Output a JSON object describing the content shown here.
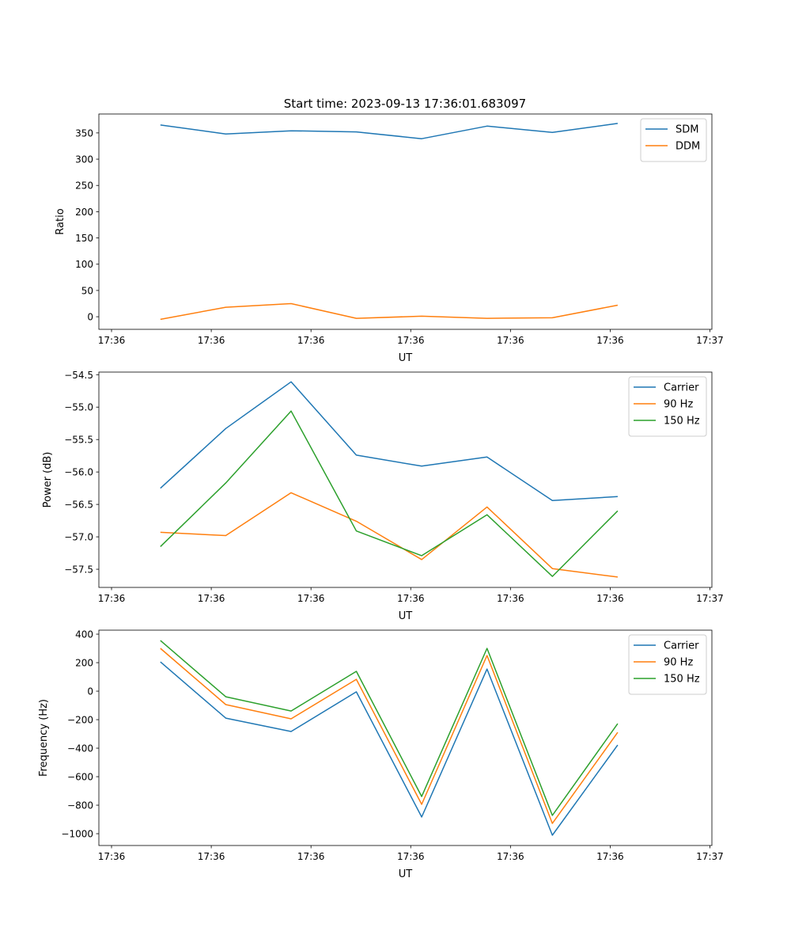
{
  "title": "Start time: 2023-09-13 17:36:01.683097",
  "colors": {
    "c0": "#1f77b4",
    "c1": "#ff7f0e",
    "c2": "#2ca02c"
  },
  "chart_data": [
    {
      "type": "line",
      "title": "Start time: 2023-09-13 17:36:01.683097",
      "xlabel": "UT",
      "ylabel": "Ratio",
      "x": [
        0.49,
        1.145,
        1.8,
        2.455,
        3.11,
        3.765,
        4.42,
        5.075
      ],
      "xlim": [
        -0.127,
        6.02
      ],
      "xticks": [
        0,
        1,
        2,
        3,
        4,
        5,
        6
      ],
      "xtick_labels": [
        "17:36",
        "17:36",
        "17:36",
        "17:36",
        "17:36",
        "17:36",
        "17:37"
      ],
      "ylim": [
        -24,
        386
      ],
      "yticks": [
        0,
        50,
        100,
        150,
        200,
        250,
        300,
        350
      ],
      "ytick_labels": [
        "0",
        "50",
        "100",
        "150",
        "200",
        "250",
        "300",
        "350"
      ],
      "legend": "top-right",
      "series": [
        {
          "name": "SDM",
          "color": "#1f77b4",
          "values": [
            365,
            348,
            354,
            352,
            339,
            363,
            351,
            368
          ]
        },
        {
          "name": "DDM",
          "color": "#ff7f0e",
          "values": [
            -5,
            18,
            25,
            -3,
            1,
            -3,
            -2,
            22
          ]
        }
      ]
    },
    {
      "type": "line",
      "xlabel": "UT",
      "ylabel": "Power (dB)",
      "x": [
        0.49,
        1.145,
        1.8,
        2.455,
        3.11,
        3.765,
        4.42,
        5.075
      ],
      "xlim": [
        -0.127,
        6.02
      ],
      "xticks": [
        0,
        1,
        2,
        3,
        4,
        5,
        6
      ],
      "xtick_labels": [
        "17:36",
        "17:36",
        "17:36",
        "17:36",
        "17:36",
        "17:36",
        "17:37"
      ],
      "ylim": [
        -57.78,
        -54.46
      ],
      "yticks": [
        -57.5,
        -57.0,
        -56.5,
        -56.0,
        -55.5,
        -55.0,
        -54.5
      ],
      "ytick_labels": [
        "−57.5",
        "−57.0",
        "−56.5",
        "−56.0",
        "−55.5",
        "−55.0",
        "−54.5"
      ],
      "legend": "top-right",
      "series": [
        {
          "name": "Carrier",
          "color": "#1f77b4",
          "values": [
            -56.25,
            -55.33,
            -54.61,
            -55.74,
            -55.91,
            -55.77,
            -56.44,
            -56.38
          ]
        },
        {
          "name": "90 Hz",
          "color": "#ff7f0e",
          "values": [
            -56.93,
            -56.98,
            -56.32,
            -56.76,
            -57.35,
            -56.54,
            -57.49,
            -57.62
          ]
        },
        {
          "name": "150 Hz",
          "color": "#2ca02c",
          "values": [
            -57.15,
            -56.17,
            -55.06,
            -56.91,
            -57.29,
            -56.66,
            -57.61,
            -56.6
          ]
        }
      ]
    },
    {
      "type": "line",
      "xlabel": "UT",
      "ylabel": "Frequency (Hz)",
      "x": [
        0.49,
        1.145,
        1.8,
        2.455,
        3.11,
        3.765,
        4.42,
        5.075
      ],
      "xlim": [
        -0.127,
        6.02
      ],
      "xticks": [
        0,
        1,
        2,
        3,
        4,
        5,
        6
      ],
      "xtick_labels": [
        "17:36",
        "17:36",
        "17:36",
        "17:36",
        "17:36",
        "17:36",
        "17:37"
      ],
      "ylim": [
        -1083,
        428
      ],
      "yticks": [
        -1000,
        -800,
        -600,
        -400,
        -200,
        0,
        200,
        400
      ],
      "ytick_labels": [
        "−1000",
        "−800",
        "−600",
        "−400",
        "−200",
        "0",
        "200",
        "400"
      ],
      "legend": "top-right",
      "series": [
        {
          "name": "Carrier",
          "color": "#1f77b4",
          "values": [
            205,
            -189,
            -283,
            -5,
            -883,
            155,
            -1011,
            -378
          ]
        },
        {
          "name": "90 Hz",
          "color": "#ff7f0e",
          "values": [
            300,
            -94,
            -194,
            83,
            -794,
            250,
            -928,
            -289
          ]
        },
        {
          "name": "150 Hz",
          "color": "#2ca02c",
          "values": [
            355,
            -39,
            -139,
            139,
            -739,
            300,
            -872,
            -228
          ]
        }
      ]
    }
  ]
}
